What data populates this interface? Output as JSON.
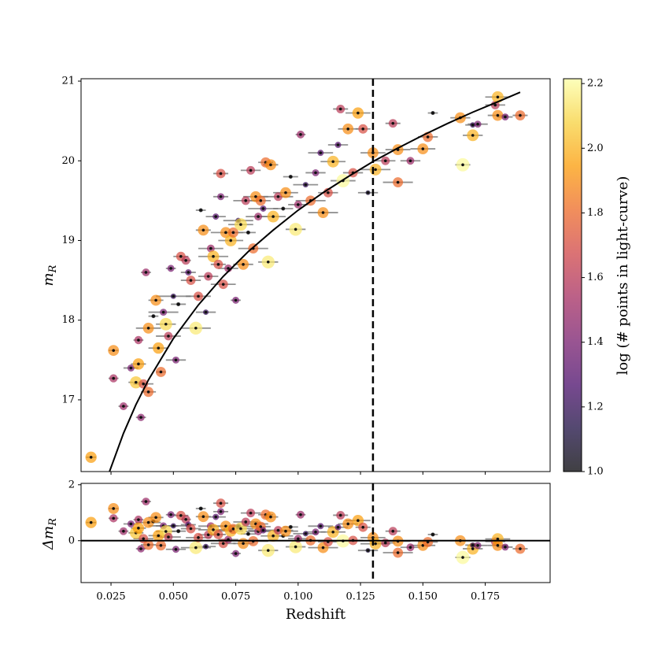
{
  "chart_data": [
    {
      "type": "scatter",
      "ylabel": [
        "m",
        "R"
      ],
      "xlim": [
        0.013,
        0.201
      ],
      "ylim": [
        16.1,
        21.03
      ],
      "yticks": [
        17,
        18,
        19,
        20,
        21
      ],
      "vline": 0.13,
      "x": [
        0.017,
        0.026,
        0.026,
        0.03,
        0.033,
        0.035,
        0.036,
        0.036,
        0.037,
        0.038,
        0.039,
        0.04,
        0.04,
        0.042,
        0.043,
        0.044,
        0.045,
        0.046,
        0.047,
        0.048,
        0.049,
        0.05,
        0.051,
        0.052,
        0.053,
        0.055,
        0.056,
        0.057,
        0.069,
        0.059,
        0.06,
        0.061,
        0.062,
        0.063,
        0.064,
        0.065,
        0.066,
        0.067,
        0.068,
        0.069,
        0.07,
        0.071,
        0.072,
        0.073,
        0.074,
        0.075,
        0.076,
        0.077,
        0.078,
        0.079,
        0.08,
        0.081,
        0.082,
        0.083,
        0.084,
        0.085,
        0.086,
        0.087,
        0.088,
        0.089,
        0.09,
        0.092,
        0.094,
        0.095,
        0.097,
        0.099,
        0.1,
        0.101,
        0.103,
        0.105,
        0.107,
        0.109,
        0.11,
        0.112,
        0.114,
        0.116,
        0.117,
        0.118,
        0.12,
        0.122,
        0.124,
        0.126,
        0.128,
        0.13,
        0.131,
        0.135,
        0.138,
        0.14,
        0.14,
        0.145,
        0.15,
        0.152,
        0.154,
        0.165,
        0.166,
        0.17,
        0.17,
        0.172,
        0.179,
        0.18,
        0.18,
        0.183,
        0.189
      ],
      "y": [
        16.28,
        17.62,
        17.27,
        16.92,
        17.4,
        17.22,
        17.75,
        17.45,
        16.78,
        17.2,
        18.6,
        17.9,
        17.1,
        18.05,
        18.25,
        17.65,
        17.35,
        18.1,
        17.95,
        17.8,
        18.65,
        18.3,
        17.5,
        18.2,
        18.8,
        18.75,
        18.6,
        18.5,
        19.84,
        17.9,
        18.3,
        19.38,
        19.13,
        18.1,
        18.55,
        18.9,
        18.8,
        19.3,
        18.7,
        19.55,
        18.45,
        19.1,
        18.65,
        19.0,
        19.1,
        18.25,
        19.25,
        19.2,
        18.7,
        19.5,
        19.1,
        19.88,
        18.9,
        19.55,
        19.3,
        19.5,
        19.4,
        19.98,
        18.73,
        19.95,
        19.3,
        19.55,
        19.4,
        19.6,
        19.8,
        19.14,
        19.45,
        20.33,
        19.7,
        19.5,
        19.85,
        20.1,
        19.35,
        19.6,
        19.99,
        20.2,
        20.65,
        19.75,
        20.4,
        19.85,
        20.6,
        20.4,
        19.6,
        20.1,
        19.89,
        20.0,
        20.47,
        20.14,
        19.73,
        20.0,
        20.15,
        20.3,
        20.6,
        20.54,
        19.95,
        20.32,
        20.45,
        20.46,
        20.7,
        20.8,
        20.57,
        20.55,
        20.57
      ],
      "c": [
        1.95,
        1.9,
        1.55,
        1.5,
        1.4,
        2.05,
        1.55,
        1.95,
        1.45,
        1.7,
        1.5,
        1.9,
        1.8,
        1.0,
        1.9,
        1.95,
        1.8,
        1.4,
        2.1,
        1.6,
        1.4,
        1.2,
        1.4,
        1.0,
        1.7,
        1.6,
        1.3,
        1.7,
        1.7,
        2.15,
        1.7,
        1.0,
        1.9,
        1.2,
        1.6,
        1.5,
        2.0,
        1.3,
        1.7,
        1.4,
        1.7,
        1.9,
        1.5,
        2.0,
        1.8,
        1.4,
        1.2,
        2.1,
        1.9,
        1.6,
        1.0,
        1.6,
        1.8,
        1.9,
        1.5,
        1.8,
        1.3,
        1.8,
        2.15,
        1.9,
        2.0,
        1.6,
        1.0,
        1.9,
        1.0,
        2.15,
        1.5,
        1.5,
        1.2,
        1.8,
        1.4,
        1.3,
        1.9,
        1.7,
        2.0,
        1.3,
        1.6,
        2.2,
        1.9,
        1.7,
        1.95,
        1.7,
        1.1,
        1.9,
        2.0,
        1.6,
        1.6,
        1.9,
        1.8,
        1.5,
        1.9,
        1.8,
        1.0,
        1.9,
        2.2,
        2.0,
        1.2,
        1.4,
        1.6,
        2.0,
        1.9,
        1.4,
        1.8
      ],
      "xerr": [
        0.002,
        0.002,
        0.002,
        0.002,
        0.003,
        0.003,
        0.002,
        0.003,
        0.002,
        0.004,
        0.002,
        0.005,
        0.003,
        0.002,
        0.003,
        0.004,
        0.002,
        0.006,
        0.004,
        0.005,
        0.002,
        0.007,
        0.004,
        0.003,
        0.003,
        0.002,
        0.003,
        0.004,
        0.003,
        0.006,
        0.005,
        0.002,
        0.003,
        0.004,
        0.004,
        0.005,
        0.006,
        0.004,
        0.003,
        0.003,
        0.005,
        0.006,
        0.004,
        0.005,
        0.004,
        0.002,
        0.006,
        0.005,
        0.004,
        0.005,
        0.003,
        0.004,
        0.006,
        0.005,
        0.005,
        0.004,
        0.006,
        0.003,
        0.004,
        0.003,
        0.005,
        0.006,
        0.004,
        0.005,
        0.003,
        0.004,
        0.004,
        0.002,
        0.005,
        0.006,
        0.004,
        0.005,
        0.006,
        0.004,
        0.005,
        0.004,
        0.003,
        0.005,
        0.004,
        0.004,
        0.005,
        0.003,
        0.004,
        0.005,
        0.006,
        0.004,
        0.003,
        0.005,
        0.006,
        0.004,
        0.005,
        0.004,
        0.002,
        0.004,
        0.003,
        0.004,
        0.003,
        0.004,
        0.004,
        0.005,
        0.004,
        0.003,
        0.003
      ],
      "curve": {
        "x": [
          0.0244,
          0.03,
          0.035,
          0.04,
          0.05,
          0.06,
          0.07,
          0.08,
          0.09,
          0.1,
          0.11,
          0.12,
          0.13,
          0.14,
          0.15,
          0.16,
          0.17,
          0.18,
          0.189
        ],
        "y": [
          16.1,
          16.58,
          16.94,
          17.25,
          17.77,
          18.19,
          18.55,
          18.86,
          19.13,
          19.38,
          19.6,
          19.8,
          19.99,
          20.16,
          20.32,
          20.47,
          20.61,
          20.74,
          20.86
        ]
      },
      "colorbar": {
        "label": "log (# points in light-curve)",
        "clim": [
          1.0,
          2.215
        ],
        "ticks": [
          {
            "value": 1.0,
            "label": "1.0"
          },
          1.2,
          1.4,
          1.6,
          1.8,
          {
            "value": 2.0,
            "label": "2.0"
          },
          2.2
        ],
        "colors": [
          "#000004",
          "#1b0c41",
          "#4a0c6b",
          "#781c6d",
          "#a52c60",
          "#cf4446",
          "#ed6925",
          "#fb9b06",
          "#f7d13d",
          "#fcffa4"
        ]
      }
    },
    {
      "type": "residual",
      "xlabel": "Redshift",
      "ylabel": [
        "Δm",
        "R"
      ],
      "ylim": [
        -1.5,
        2.05
      ],
      "yticks": [
        0,
        2
      ],
      "hline": 0,
      "xticks": [
        0.025,
        {
          "value": 0.05,
          "label": "0.050"
        },
        0.075,
        {
          "value": 0.1,
          "label": "0.100"
        },
        0.125,
        {
          "value": 0.15,
          "label": "0.150"
        },
        0.175
      ],
      "values": [
        0.65,
        1.15,
        0.8,
        0.34,
        0.6,
        0.28,
        0.75,
        0.45,
        -0.29,
        0.07,
        1.4,
        0.65,
        -0.15,
        0.69,
        0.83,
        0.18,
        -0.17,
        0.53,
        0.33,
        0.13,
        0.93,
        0.53,
        -0.31,
        0.34,
        0.9,
        0.76,
        0.57,
        0.43,
        1.34,
        -0.25,
        0.11,
        1.15,
        0.86,
        -0.21,
        0.21,
        0.52,
        0.39,
        0.85,
        0.22,
        1.04,
        -0.1,
        0.52,
        0.04,
        0.35,
        0.42,
        -0.46,
        0.51,
        0.43,
        -0.1,
        0.67,
        0.24,
        0.99,
        -0.02,
        0.6,
        0.33,
        0.5,
        0.37,
        0.93,
        -0.35,
        0.85,
        0.17,
        0.37,
        0.17,
        0.34,
        0.49,
        -0.22,
        0.07,
        0.93,
        0.25,
        0.01,
        0.31,
        0.52,
        -0.25,
        -0.04,
        0.31,
        0.48,
        0.91,
        -0.01,
        0.6,
        0.01,
        0.72,
        0.48,
        -0.35,
        0.11,
        -0.11,
        -0.08,
        0.34,
        -0.02,
        -0.43,
        -0.24,
        -0.17,
        -0.05,
        0.22,
        0.0,
        -0.6,
        -0.29,
        -0.16,
        -0.17,
        -0.03,
        0.06,
        -0.17,
        -0.23,
        -0.29
      ]
    }
  ]
}
